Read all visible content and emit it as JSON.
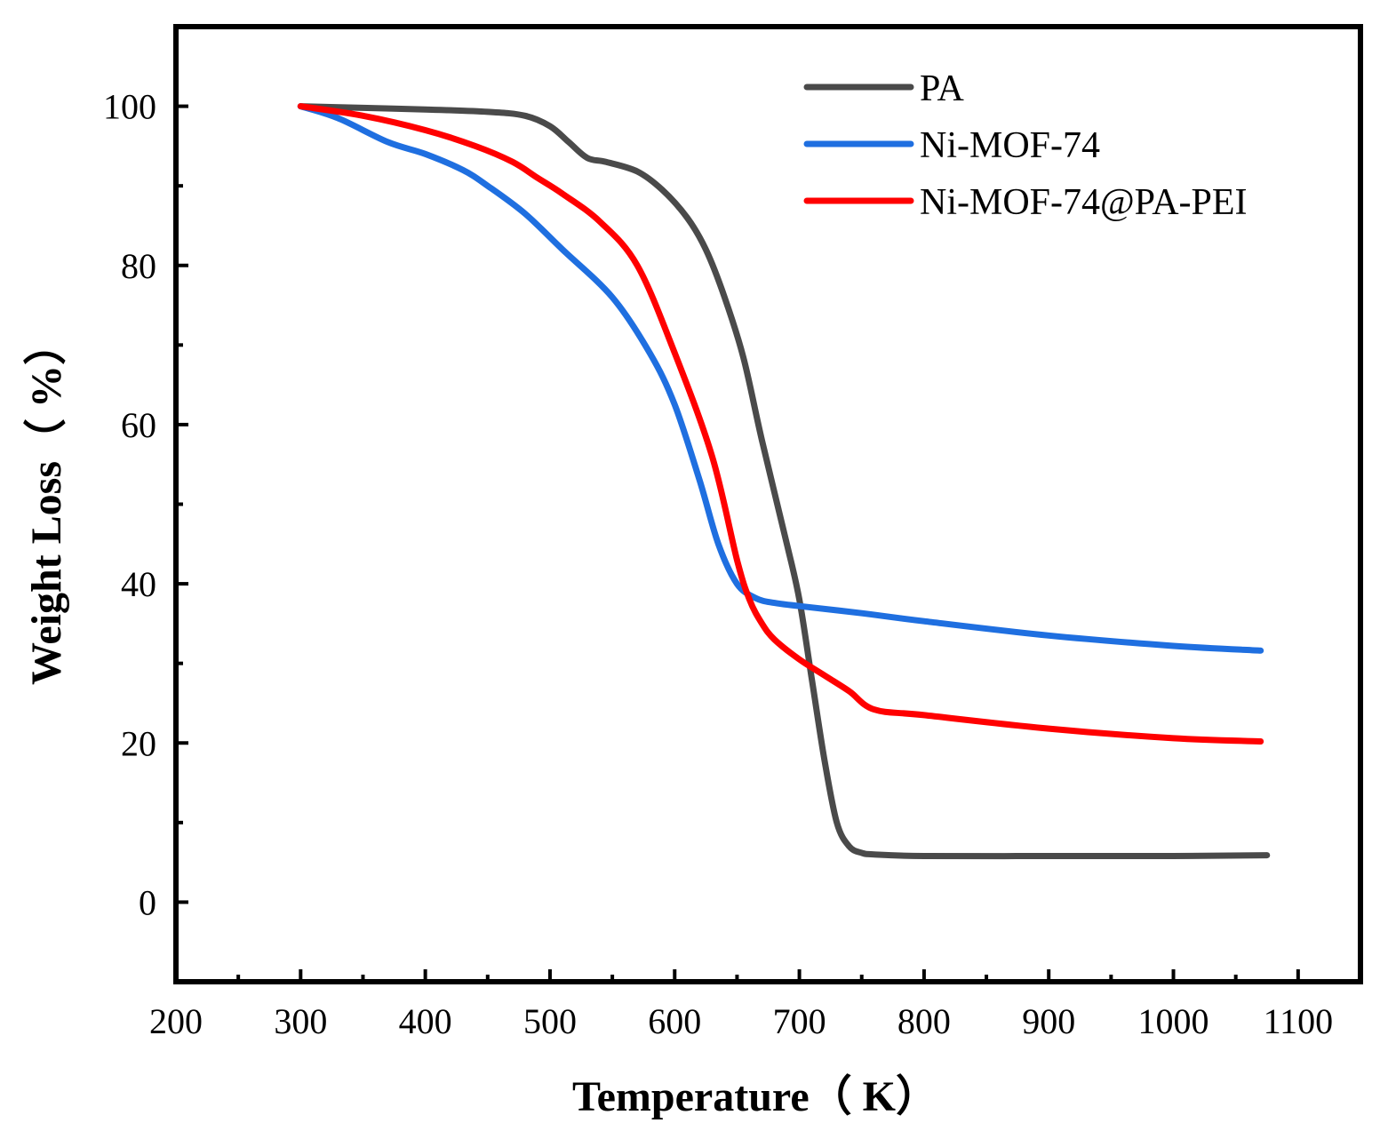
{
  "chart_data": {
    "type": "line",
    "title": "",
    "xlabel": "Temperature（ K）",
    "ylabel": "Weight Loss（ %）",
    "xlim": [
      200,
      1150
    ],
    "ylim": [
      -10,
      110
    ],
    "x_ticks": [
      "200",
      "300",
      "400",
      "500",
      "600",
      "700",
      "800",
      "900",
      "1000",
      "1100"
    ],
    "y_ticks": [
      "0",
      "20",
      "40",
      "60",
      "80",
      "100"
    ],
    "grid": false,
    "legend_position": "top-right",
    "series": [
      {
        "name": "PA",
        "color": "#4a4a4a",
        "x": [
          300,
          350,
          400,
          450,
          480,
          500,
          515,
          530,
          545,
          570,
          590,
          610,
          625,
          640,
          655,
          670,
          690,
          700,
          710,
          720,
          730,
          740,
          750,
          760,
          800,
          900,
          1000,
          1075
        ],
        "y": [
          100,
          99.8,
          99.6,
          99.3,
          98.8,
          97.5,
          95.5,
          93.5,
          93,
          91.8,
          89.5,
          86,
          82,
          76,
          68.5,
          58,
          45,
          38,
          28,
          18,
          10,
          7,
          6.2,
          6,
          5.8,
          5.8,
          5.8,
          5.9
        ]
      },
      {
        "name": "Ni-MOF-74",
        "color": "#1f6fe0",
        "x": [
          300,
          330,
          370,
          400,
          430,
          450,
          480,
          510,
          550,
          580,
          600,
          620,
          635,
          650,
          665,
          680,
          700,
          750,
          800,
          900,
          1000,
          1070
        ],
        "y": [
          100,
          98.5,
          95.5,
          94,
          92,
          90,
          86.5,
          82,
          76,
          69,
          62.5,
          53,
          45,
          40,
          38.2,
          37.6,
          37.2,
          36.3,
          35.3,
          33.5,
          32.2,
          31.6
        ]
      },
      {
        "name": "Ni-MOF-74@PA-PEI",
        "color": "#ff0000",
        "x": [
          300,
          350,
          400,
          440,
          470,
          490,
          510,
          540,
          570,
          600,
          630,
          650,
          660,
          670,
          680,
          700,
          720,
          740,
          760,
          800,
          900,
          1000,
          1070
        ],
        "y": [
          100,
          98.8,
          97,
          95,
          93,
          91,
          89,
          85.5,
          80,
          69,
          56,
          43,
          38,
          35,
          33,
          30.5,
          28.5,
          26.5,
          24.2,
          23.5,
          21.8,
          20.6,
          20.2
        ]
      }
    ]
  }
}
